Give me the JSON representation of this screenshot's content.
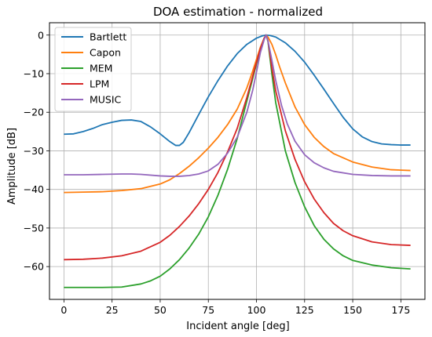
{
  "chart_data": {
    "type": "line",
    "title": "DOA estimation - normalized",
    "xlabel": "Incident angle [deg]",
    "ylabel": "Amplitude [dB]",
    "xlim": [
      -7.5,
      187.5
    ],
    "ylim": [
      -68.5,
      3.2
    ],
    "xticks": [
      0,
      25,
      50,
      75,
      100,
      125,
      150,
      175
    ],
    "yticks": [
      0,
      -10,
      -20,
      -30,
      -40,
      -50,
      -60
    ],
    "grid": true,
    "legend_position": "top-left",
    "series": [
      {
        "name": "Bartlett",
        "color": "#1f77b4",
        "x": [
          0,
          5,
          10,
          15,
          20,
          25,
          30,
          35,
          40,
          45,
          50,
          55,
          58,
          60,
          62,
          65,
          70,
          75,
          80,
          85,
          90,
          95,
          100,
          103,
          105,
          107,
          110,
          115,
          120,
          125,
          130,
          135,
          140,
          145,
          150,
          155,
          160,
          165,
          170,
          175,
          180
        ],
        "y": [
          -25.7,
          -25.6,
          -25.0,
          -24.2,
          -23.2,
          -22.6,
          -22.1,
          -22.0,
          -22.4,
          -23.8,
          -25.6,
          -27.6,
          -28.6,
          -28.6,
          -27.8,
          -25.3,
          -20.6,
          -16.0,
          -11.8,
          -8.0,
          -4.8,
          -2.4,
          -0.8,
          -0.2,
          0.0,
          -0.1,
          -0.5,
          -2.0,
          -4.2,
          -7.0,
          -10.4,
          -14.0,
          -17.7,
          -21.3,
          -24.3,
          -26.4,
          -27.6,
          -28.2,
          -28.4,
          -28.5,
          -28.5
        ]
      },
      {
        "name": "Capon",
        "color": "#ff7f0e",
        "x": [
          0,
          10,
          20,
          30,
          40,
          50,
          55,
          60,
          65,
          70,
          75,
          80,
          85,
          90,
          95,
          98,
          100,
          102,
          104,
          105,
          106,
          108,
          110,
          112,
          115,
          120,
          125,
          130,
          135,
          140,
          150,
          160,
          170,
          180
        ],
        "y": [
          -40.8,
          -40.7,
          -40.6,
          -40.3,
          -39.8,
          -38.6,
          -37.5,
          -35.9,
          -34.0,
          -31.8,
          -29.3,
          -26.5,
          -23.2,
          -19.2,
          -13.7,
          -9.4,
          -6.3,
          -3.2,
          -0.8,
          0.0,
          -0.5,
          -2.4,
          -5.1,
          -8.2,
          -12.4,
          -18.6,
          -23.2,
          -26.5,
          -28.9,
          -30.7,
          -32.9,
          -34.2,
          -34.9,
          -35.1
        ]
      },
      {
        "name": "MEM",
        "color": "#2ca02c",
        "x": [
          0,
          10,
          20,
          30,
          40,
          45,
          50,
          55,
          60,
          65,
          70,
          75,
          80,
          85,
          90,
          95,
          100,
          102,
          104,
          105,
          106,
          108,
          110,
          115,
          120,
          125,
          130,
          135,
          140,
          145,
          150,
          160,
          170,
          180
        ],
        "y": [
          -65.4,
          -65.4,
          -65.4,
          -65.3,
          -64.5,
          -63.7,
          -62.5,
          -60.6,
          -58.2,
          -55.2,
          -51.6,
          -47.1,
          -41.5,
          -34.8,
          -26.8,
          -17.1,
          -7.5,
          -3.8,
          -0.9,
          0.0,
          -1.7,
          -10.0,
          -17.5,
          -30.0,
          -38.2,
          -44.5,
          -49.4,
          -52.9,
          -55.4,
          -57.2,
          -58.4,
          -59.6,
          -60.3,
          -60.6
        ]
      },
      {
        "name": "LPM",
        "color": "#d62728",
        "x": [
          0,
          10,
          20,
          30,
          40,
          50,
          55,
          60,
          65,
          70,
          75,
          80,
          85,
          90,
          95,
          100,
          102,
          104,
          105,
          106,
          108,
          110,
          115,
          120,
          125,
          130,
          135,
          140,
          145,
          150,
          160,
          170,
          180
        ],
        "y": [
          -58.2,
          -58.1,
          -57.8,
          -57.2,
          -56.0,
          -53.7,
          -51.9,
          -49.6,
          -46.9,
          -43.7,
          -40.0,
          -35.6,
          -30.3,
          -24.2,
          -16.2,
          -7.1,
          -3.6,
          -0.8,
          0.0,
          -1.5,
          -8.5,
          -14.5,
          -24.8,
          -32.2,
          -38.0,
          -42.5,
          -46.0,
          -48.8,
          -50.7,
          -52.0,
          -53.6,
          -54.3,
          -54.5
        ]
      },
      {
        "name": "MUSIC",
        "color": "#9467bd",
        "x": [
          0,
          10,
          20,
          30,
          35,
          40,
          50,
          55,
          60,
          65,
          70,
          75,
          80,
          85,
          90,
          95,
          98,
          100,
          102,
          104,
          105,
          106,
          108,
          110,
          113,
          116,
          120,
          125,
          130,
          135,
          140,
          150,
          160,
          170,
          180
        ],
        "y": [
          -36.2,
          -36.2,
          -36.1,
          -36.0,
          -36.0,
          -36.1,
          -36.5,
          -36.6,
          -36.6,
          -36.4,
          -36.0,
          -35.2,
          -33.5,
          -30.6,
          -26.5,
          -20.0,
          -14.4,
          -9.6,
          -4.6,
          -1.2,
          0.0,
          -1.5,
          -6.5,
          -11.8,
          -18.2,
          -23.0,
          -27.5,
          -31.0,
          -33.1,
          -34.4,
          -35.3,
          -36.1,
          -36.4,
          -36.5,
          -36.5
        ]
      }
    ]
  }
}
